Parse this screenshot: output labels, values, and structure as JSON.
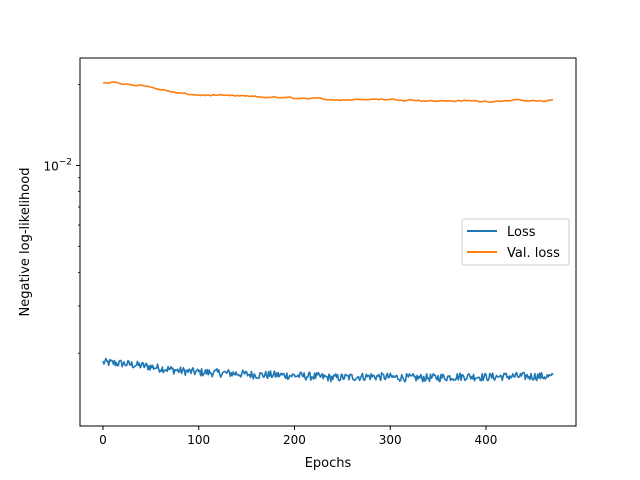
{
  "chart_data": {
    "type": "line",
    "title": "",
    "xlabel": "Epochs",
    "ylabel": "Negative log-likelihood",
    "yscale": "log",
    "xlim": [
      -24,
      494
    ],
    "ylim_log10": [
      -2.97,
      -1.6
    ],
    "xticks": [
      0,
      100,
      200,
      300,
      400
    ],
    "xtick_labels": [
      "0",
      "100",
      "200",
      "300",
      "400"
    ],
    "yticks": [
      0.01
    ],
    "ytick_label_base": "10",
    "ytick_label_exp": "−2",
    "grid": false,
    "legend_position": "center-right",
    "series": [
      {
        "name": "Loss",
        "color": "#1f77b4",
        "x": [
          0,
          20,
          40,
          60,
          80,
          100,
          120,
          140,
          160,
          180,
          200,
          220,
          240,
          260,
          280,
          300,
          320,
          340,
          360,
          380,
          400,
          420,
          440,
          460,
          470
        ],
        "y": [
          0.00185,
          0.00183,
          0.0018,
          0.00176,
          0.00172,
          0.0017,
          0.00169,
          0.00168,
          0.00166,
          0.00166,
          0.00165,
          0.00164,
          0.00162,
          0.00163,
          0.00164,
          0.00163,
          0.00162,
          0.00162,
          0.00163,
          0.00164,
          0.00163,
          0.00164,
          0.00164,
          0.00164,
          0.00163
        ],
        "noise": 0.035
      },
      {
        "name": "Val. loss",
        "color": "#ff7f0e",
        "x": [
          0,
          10,
          20,
          40,
          60,
          80,
          100,
          120,
          140,
          160,
          180,
          200,
          220,
          240,
          260,
          280,
          300,
          320,
          340,
          360,
          380,
          400,
          420,
          440,
          460,
          470
        ],
        "y": [
          0.0203,
          0.0204,
          0.0202,
          0.0199,
          0.0192,
          0.0185,
          0.0183,
          0.0182,
          0.0181,
          0.018,
          0.0179,
          0.0178,
          0.0177,
          0.0176,
          0.0176,
          0.0177,
          0.0176,
          0.0176,
          0.0174,
          0.0174,
          0.0174,
          0.0173,
          0.0175,
          0.0174,
          0.0173,
          0.0175
        ],
        "noise": 0.008
      }
    ]
  }
}
